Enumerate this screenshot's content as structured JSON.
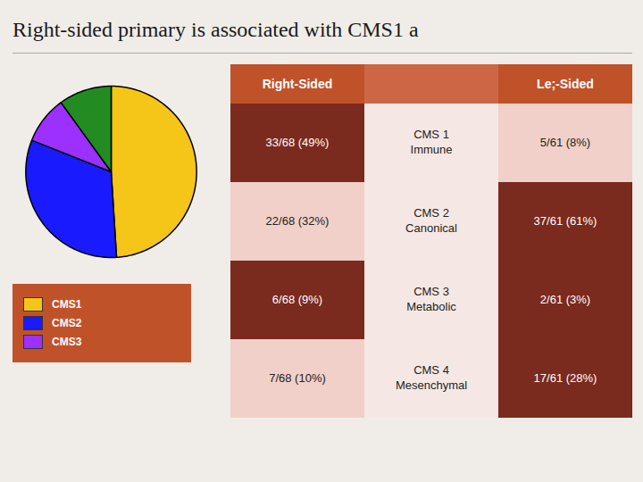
{
  "chart_data": [
    {
      "type": "pie",
      "title": "Right-sided primary is associated with CMS1 a",
      "background_color": "#f0ede8",
      "categories": [
        "CMS1",
        "CMS2",
        "CMS3",
        null
      ],
      "values": [
        49,
        32,
        9,
        10
      ],
      "colors": [
        "#f5c518",
        "#1a1aff",
        "#9b30ff",
        "#228b22"
      ],
      "legend": "lower left",
      "legend_color": "#c0522a"
    },
    {
      "type": "table",
      "categories": [
        "CMS 1\nImmune",
        "CMS 2\nCanonical",
        "CMS 3\nMetabolic",
        "CMS 4\nMesenchymal"
      ],
      "category_color": "#f5e8e4",
      "category_header_color": "#cc6644",
      "series": [
        {
          "name": "Right-Sided",
          "color": "#c0522a",
          "labels": [
            "33/68 (49%)",
            "22/68 (32%)",
            "6/68 (9%)",
            "7/68 (10%)"
          ],
          "colors": [
            "#7b2a1e",
            "#f0d0c8",
            "#7b2a1e",
            "#f0d0c8"
          ]
        },
        {
          "name": "Le;-Sided",
          "color": "#c0522a",
          "labels": [
            "5/61 (8%)",
            "37/61 (61%)",
            "2/61 (3%)",
            "17/61 (28%)"
          ],
          "colors": [
            "#f0d0c8",
            "#7b2a1e",
            "#7b2a1e",
            "#7b2a1e"
          ]
        }
      ]
    }
  ]
}
